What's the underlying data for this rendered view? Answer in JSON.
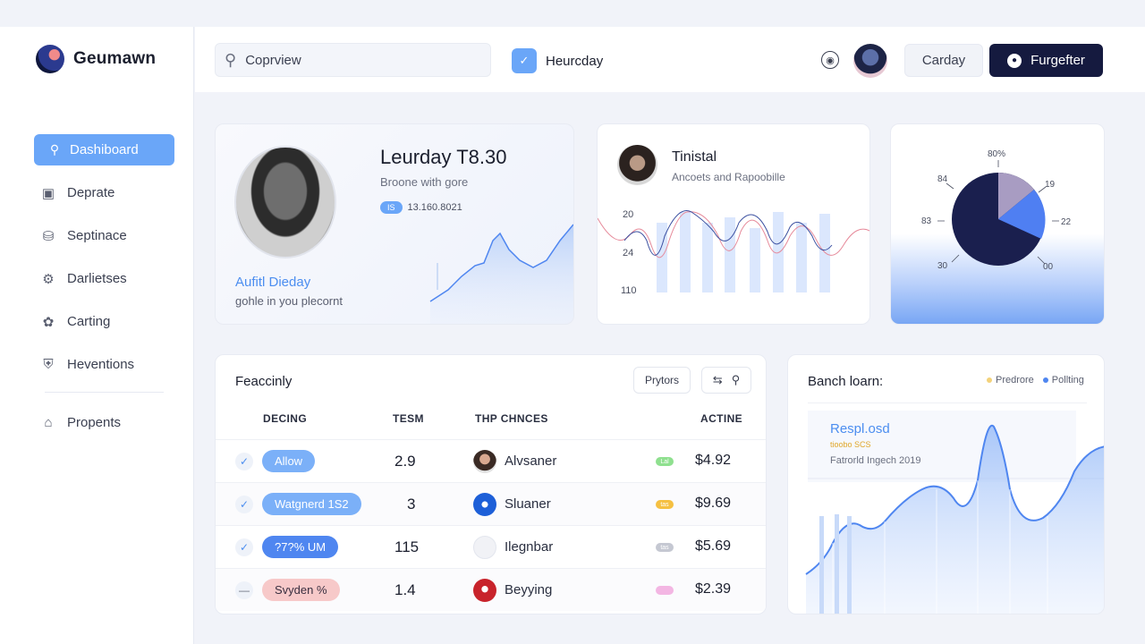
{
  "app": {
    "name": "Geumawn"
  },
  "sidebar": {
    "items": [
      {
        "label": "Dashiboard",
        "icon": "search-icon",
        "active": true
      },
      {
        "label": "Deprate",
        "icon": "building-icon"
      },
      {
        "label": "Septinace",
        "icon": "lock-icon"
      },
      {
        "label": "Darlietses",
        "icon": "settings-icon"
      },
      {
        "label": "Carting",
        "icon": "leaf-icon"
      },
      {
        "label": "Heventions",
        "icon": "shield-icon"
      }
    ],
    "footer_item": {
      "label": "Propents",
      "icon": "home-icon"
    }
  },
  "topbar": {
    "search_value": "Coprview",
    "tab_label": "Heurcday",
    "light_button": "Carday",
    "primary_button": "Furgefter"
  },
  "profile": {
    "title": "Leurday T8.30",
    "subtitle": "Broone with gore",
    "meta_tag": "IS",
    "meta_value": "13.160.8021",
    "name": "Aufitl Dieday",
    "caption": "gohle in you plecornt"
  },
  "social": {
    "title": "Tinistal",
    "subtitle": "Ancoets and Rapoobille",
    "axis_labels": [
      "20",
      "24",
      "110"
    ]
  },
  "donut": {
    "labels": [
      "80%",
      "84",
      "19",
      "83",
      "22",
      "30",
      "00"
    ],
    "colors": {
      "main": "#1a1f4e",
      "accent": "#4f7ff2",
      "muted": "#a89cc2"
    }
  },
  "table": {
    "title": "Feaccinly",
    "filter_button": "Prytors",
    "columns": [
      "DECING",
      "TESM",
      "THP CHNCES",
      "ACTINE"
    ],
    "rows": [
      {
        "status": "Allow",
        "value": "2.9",
        "user": "Alvsaner",
        "amount": "$4.92",
        "status_color": "#7bb0f8",
        "mini_color": "#8fe08f",
        "mini_label": "Lal"
      },
      {
        "status": "Watgnerd 1S2",
        "value": "3",
        "user": "Sluaner",
        "amount": "$9.69",
        "status_color": "#7bb0f8",
        "mini_color": "#f5c042",
        "mini_label": "tas"
      },
      {
        "status": "?7?% UM",
        "value": "115",
        "user": "Ilegnbar",
        "amount": "$5.69",
        "status_color": "#4f86f0",
        "mini_color": "#c5c8d2",
        "mini_label": "tas"
      },
      {
        "status": "Svyden  %",
        "value": "1.4",
        "user": "Beyying",
        "amount": "$2.39",
        "status_color": "#f7c9c9",
        "mini_color": "#f3b6e3",
        "mini_label": ""
      }
    ]
  },
  "area": {
    "title": "Banch loarn:",
    "legend": [
      {
        "label": "Predrore",
        "color": "#f3d27a"
      },
      {
        "label": "Pollting",
        "color": "#4f86f0"
      }
    ],
    "annotation_title": "Respl.osd",
    "annotation_sub": "tioobo SCS",
    "annotation_caption": "Fatrorld Ingech 2019"
  }
}
